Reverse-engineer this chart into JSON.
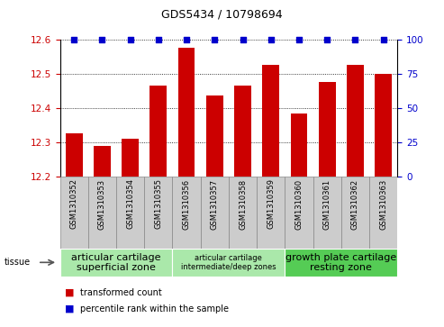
{
  "title": "GDS5434 / 10798694",
  "samples": [
    "GSM1310352",
    "GSM1310353",
    "GSM1310354",
    "GSM1310355",
    "GSM1310356",
    "GSM1310357",
    "GSM1310358",
    "GSM1310359",
    "GSM1310360",
    "GSM1310361",
    "GSM1310362",
    "GSM1310363"
  ],
  "transformed_counts": [
    12.325,
    12.29,
    12.31,
    12.465,
    12.575,
    12.435,
    12.465,
    12.525,
    12.385,
    12.475,
    12.525,
    12.5
  ],
  "percentile_ranks": [
    100,
    100,
    100,
    100,
    100,
    100,
    100,
    100,
    100,
    100,
    100,
    100
  ],
  "ylim": [
    12.2,
    12.6
  ],
  "yticks": [
    12.2,
    12.3,
    12.4,
    12.5,
    12.6
  ],
  "y2lim": [
    0,
    100
  ],
  "y2ticks": [
    0,
    25,
    50,
    75,
    100
  ],
  "bar_color": "#cc0000",
  "dot_color": "#0000cc",
  "tissue_groups": [
    {
      "label": "articular cartilage\nsuperficial zone",
      "start": 0,
      "end": 4,
      "color": "#aae8aa",
      "fontsize": 8
    },
    {
      "label": "articular cartilage\nintermediate/deep zones",
      "start": 4,
      "end": 8,
      "color": "#aae8aa",
      "fontsize": 6
    },
    {
      "label": "growth plate cartilage\nresting zone",
      "start": 8,
      "end": 12,
      "color": "#55cc55",
      "fontsize": 8
    }
  ],
  "tissue_label": "tissue",
  "legend_items": [
    {
      "color": "#cc0000",
      "label": "transformed count"
    },
    {
      "color": "#0000cc",
      "label": "percentile rank within the sample"
    }
  ],
  "bar_width": 0.6,
  "tick_label_color_left": "#cc0000",
  "tick_label_color_right": "#0000cc",
  "label_cell_color": "#cccccc",
  "label_cell_edge": "#888888"
}
